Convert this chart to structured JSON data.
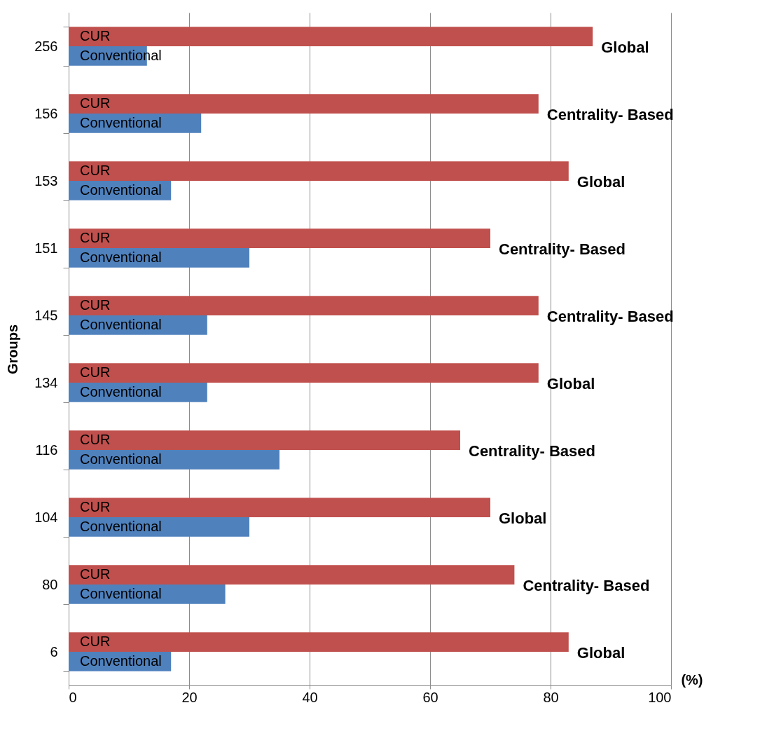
{
  "chart_data": {
    "type": "bar",
    "orientation": "horizontal",
    "xlabel": "(%)",
    "ylabel": "Groups",
    "categories": [
      "256",
      "156",
      "153",
      "151",
      "145",
      "134",
      "116",
      "104",
      "80",
      "6"
    ],
    "series": [
      {
        "name": "CUR",
        "color": "#c0504d",
        "values": [
          87,
          78,
          83,
          70,
          78,
          78,
          65,
          70,
          74,
          83
        ]
      },
      {
        "name": "Conventional",
        "color": "#4f81bd",
        "values": [
          13,
          22,
          17,
          30,
          23,
          23,
          35,
          30,
          26,
          17
        ]
      }
    ],
    "xlim": [
      0,
      100
    ],
    "xticks": [
      0,
      20,
      40,
      60,
      80,
      100
    ],
    "grid": "x",
    "legend": false,
    "annotations": [
      {
        "text": "Global",
        "x": 87,
        "y": "256"
      },
      {
        "text": "Centrality- Based",
        "x": 78,
        "y": "156"
      },
      {
        "text": "Global",
        "x": 83,
        "y": "153"
      },
      {
        "text": "Centrality- Based",
        "x": 70,
        "y": "151"
      },
      {
        "text": "Centrality- Based",
        "x": 78,
        "y": "145"
      },
      {
        "text": "Global",
        "x": 78,
        "y": "134"
      },
      {
        "text": "Centrality- Based",
        "x": 65,
        "y": "116"
      },
      {
        "text": "Global",
        "x": 70,
        "y": "104"
      },
      {
        "text": "Centrality- Based",
        "x": 74,
        "y": "80"
      },
      {
        "text": "Global",
        "x": 83,
        "y": "6"
      }
    ]
  }
}
